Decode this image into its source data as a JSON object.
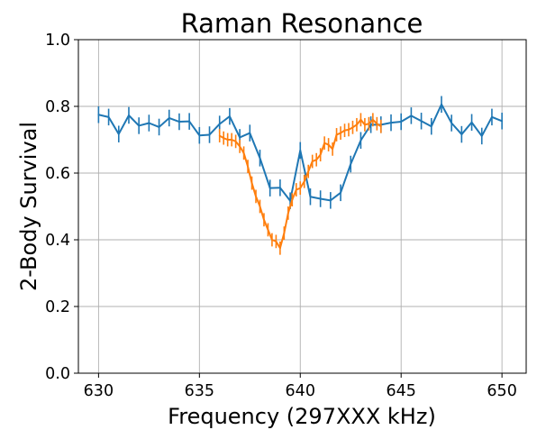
{
  "chart_data": {
    "type": "line",
    "title": "Raman Resonance",
    "xlabel": "Frequency (297XXX kHz)",
    "ylabel": "2-Body Survival",
    "xlim": [
      629,
      651.2
    ],
    "ylim": [
      0,
      1
    ],
    "xticks": [
      630,
      635,
      640,
      645,
      650
    ],
    "yticks": [
      0.0,
      0.2,
      0.4,
      0.6,
      0.8,
      1.0
    ],
    "xtick_labels": [
      "630",
      "635",
      "640",
      "645",
      "650"
    ],
    "ytick_labels": [
      "0.0",
      "0.2",
      "0.4",
      "0.6",
      "0.8",
      "1.0"
    ],
    "grid": true,
    "series": [
      {
        "color": "#1f77b4",
        "x": [
          630,
          630.5,
          631,
          631.5,
          632,
          632.5,
          633,
          633.5,
          634,
          634.5,
          635,
          635.5,
          636,
          636.5,
          637,
          637.5,
          638,
          638.5,
          639,
          639.5,
          640,
          640.5,
          641,
          641.5,
          642,
          642.5,
          643,
          643.5,
          644,
          644.5,
          645,
          645.5,
          646,
          646.5,
          647,
          647.5,
          648,
          648.5,
          649,
          649.5,
          650
        ],
        "y": [
          0.775,
          0.768,
          0.717,
          0.773,
          0.742,
          0.75,
          0.738,
          0.765,
          0.754,
          0.755,
          0.713,
          0.715,
          0.747,
          0.77,
          0.707,
          0.72,
          0.645,
          0.555,
          0.556,
          0.517,
          0.668,
          0.529,
          0.523,
          0.518,
          0.541,
          0.627,
          0.698,
          0.745,
          0.745,
          0.751,
          0.754,
          0.772,
          0.756,
          0.74,
          0.806,
          0.75,
          0.716,
          0.752,
          0.711,
          0.768,
          0.756
        ],
        "err": [
          0.025,
          0.025,
          0.025,
          0.025,
          0.025,
          0.025,
          0.025,
          0.025,
          0.025,
          0.025,
          0.025,
          0.025,
          0.025,
          0.025,
          0.025,
          0.025,
          0.025,
          0.025,
          0.025,
          0.025,
          0.025,
          0.025,
          0.025,
          0.025,
          0.025,
          0.025,
          0.025,
          0.025,
          0.025,
          0.025,
          0.025,
          0.025,
          0.025,
          0.025,
          0.025,
          0.025,
          0.025,
          0.025,
          0.025,
          0.025,
          0.025
        ]
      },
      {
        "color": "#ff7f0e",
        "x": [
          636,
          636.2,
          636.4,
          636.6,
          636.8,
          637,
          637.2,
          637.4,
          637.6,
          637.8,
          638,
          638.2,
          638.4,
          638.6,
          638.8,
          639,
          639.2,
          639.4,
          639.6,
          639.8,
          640,
          640.2,
          640.4,
          640.6,
          640.8,
          641,
          641.2,
          641.4,
          641.6,
          641.8,
          642,
          642.2,
          642.4,
          642.6,
          642.8,
          643,
          643.2,
          643.4,
          643.6,
          643.8,
          644
        ],
        "y": [
          0.712,
          0.705,
          0.7,
          0.7,
          0.695,
          0.68,
          0.66,
          0.62,
          0.57,
          0.53,
          0.5,
          0.46,
          0.43,
          0.4,
          0.395,
          0.375,
          0.42,
          0.48,
          0.52,
          0.55,
          0.555,
          0.575,
          0.605,
          0.635,
          0.64,
          0.655,
          0.69,
          0.685,
          0.672,
          0.715,
          0.72,
          0.728,
          0.73,
          0.737,
          0.745,
          0.76,
          0.745,
          0.748,
          0.76,
          0.748,
          0.74
        ],
        "err": [
          0.02,
          0.02,
          0.02,
          0.02,
          0.02,
          0.02,
          0.02,
          0.02,
          0.02,
          0.02,
          0.02,
          0.02,
          0.02,
          0.02,
          0.02,
          0.02,
          0.02,
          0.02,
          0.02,
          0.02,
          0.02,
          0.02,
          0.02,
          0.02,
          0.02,
          0.02,
          0.02,
          0.02,
          0.02,
          0.02,
          0.02,
          0.02,
          0.02,
          0.02,
          0.02,
          0.02,
          0.02,
          0.02,
          0.02,
          0.02,
          0.02
        ]
      }
    ]
  }
}
